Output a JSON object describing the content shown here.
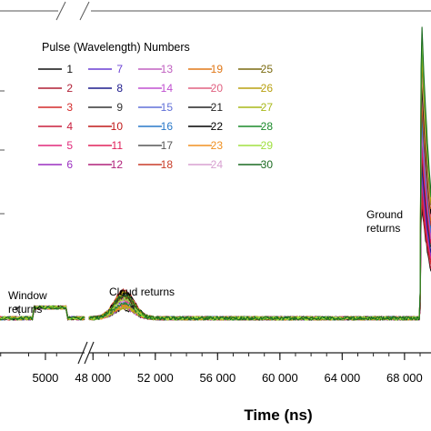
{
  "chart_data": {
    "type": "line",
    "xlabel": "Time (ns)",
    "x_ticks": [
      "5000",
      "48 000",
      "52 000",
      "56 000",
      "60 000",
      "64 000",
      "68 000"
    ],
    "x_tick_values": [
      5000,
      48000,
      52000,
      56000,
      60000,
      64000,
      68000
    ],
    "x_segments": [
      {
        "xmin": 4350,
        "xmax": 5350
      },
      {
        "xmin": 47750,
        "xmax": 69700
      }
    ],
    "y_units": "relative",
    "ylim": [
      0,
      1
    ],
    "grid": false,
    "legend": {
      "title": "Pulse (Wavelength) Numbers",
      "placement": "top-left",
      "columns": 5,
      "entries": [
        {
          "label": "1",
          "color": "#111111"
        },
        {
          "label": "2",
          "color": "#b01e34"
        },
        {
          "label": "3",
          "color": "#d42a2a"
        },
        {
          "label": "4",
          "color": "#c81e3c"
        },
        {
          "label": "5",
          "color": "#e0297a"
        },
        {
          "label": "6",
          "color": "#9b2fc0"
        },
        {
          "label": "7",
          "color": "#6a3fd4"
        },
        {
          "label": "8",
          "color": "#1d1a8c"
        },
        {
          "label": "9",
          "color": "#333333"
        },
        {
          "label": "10",
          "color": "#c01818"
        },
        {
          "label": "11",
          "color": "#e0205a"
        },
        {
          "label": "12",
          "color": "#b0207a"
        },
        {
          "label": "13",
          "color": "#c060c0"
        },
        {
          "label": "14",
          "color": "#c050d0"
        },
        {
          "label": "15",
          "color": "#6070d8"
        },
        {
          "label": "16",
          "color": "#2878c8"
        },
        {
          "label": "17",
          "color": "#555555"
        },
        {
          "label": "18",
          "color": "#c83c28"
        },
        {
          "label": "19",
          "color": "#e07818"
        },
        {
          "label": "20",
          "color": "#e06080"
        },
        {
          "label": "21",
          "color": "#222222"
        },
        {
          "label": "22",
          "color": "#000000"
        },
        {
          "label": "23",
          "color": "#f09020"
        },
        {
          "label": "24",
          "color": "#d8a0d0"
        },
        {
          "label": "25",
          "color": "#7a6a10"
        },
        {
          "label": "26",
          "color": "#b8a010"
        },
        {
          "label": "27",
          "color": "#a8b818"
        },
        {
          "label": "28",
          "color": "#1a8a2a"
        },
        {
          "label": "29",
          "color": "#a0e040"
        },
        {
          "label": "30",
          "color": "#1a6a20"
        }
      ]
    },
    "annotations": [
      {
        "text": [
          "Window",
          "returns"
        ],
        "x": 5000
      },
      {
        "text": [
          "Cloud returns"
        ],
        "x": 50000
      },
      {
        "text": [
          "Ground",
          "returns"
        ],
        "x": 69000
      }
    ],
    "features": {
      "baseline": 0.0,
      "window_return": {
        "start": 4900,
        "end": 5200,
        "peak": 0.035
      },
      "cloud_return": {
        "center": 50000,
        "width": 900,
        "peak_min": 0.03,
        "peak_max": 0.09
      },
      "ground_return": {
        "rise": 69000,
        "peak_min": 0.38,
        "peak_max": 1.0,
        "decay": 700
      }
    }
  }
}
